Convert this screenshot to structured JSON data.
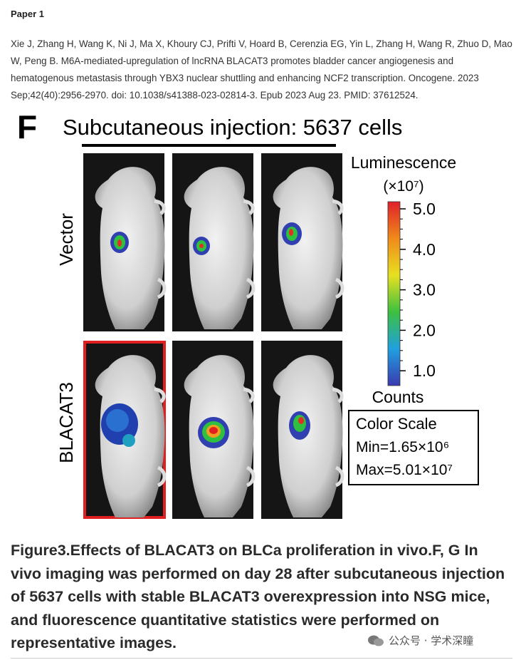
{
  "header": {
    "title": "Paper 1"
  },
  "citation": "Xie J, Zhang H, Wang K, Ni J, Ma X, Khoury CJ, Prifti V, Hoard B, Cerenzia EG, Yin L, Zhang H, Wang R, Zhuo D, Mao W, Peng B. M6A-mediated-upregulation of lncRNA BLACAT3 promotes bladder cancer angiogenesis and hematogenous metastasis through YBX3 nuclear shuttling and enhancing NCF2 transcription. Oncogene. 2023 Sep;42(40):2956-2970. doi: 10.1038/s41388-023-02814-3. Epub 2023 Aug 23. PMID: 37612524.",
  "figure": {
    "panel_letter": "F",
    "title": "Subcutaneous injection: 5637 cells",
    "row_labels": [
      "Vector",
      "BLACAT3"
    ],
    "colorbar": {
      "title": "Luminescence",
      "unit": "(×10⁷)",
      "ticks": [
        "5.0",
        "4.0",
        "3.0",
        "2.0",
        "1.0"
      ],
      "footer": "Counts"
    },
    "color_scale": {
      "title": "Color Scale",
      "min": "Min=1.65×10⁶",
      "max": "Max=5.01×10⁷"
    }
  },
  "caption": "Figure3.Effects of BLACAT3 on BLCa proliferation in vivo.F, G In vivo imaging was performed on day 28 after subcutaneous injection of 5637 cells with stable BLACAT3 overexpression into NSG mice, and fluorescence quantitative statistics were performed on representative images.",
  "watermark": "公众号 · 学术深瞳"
}
